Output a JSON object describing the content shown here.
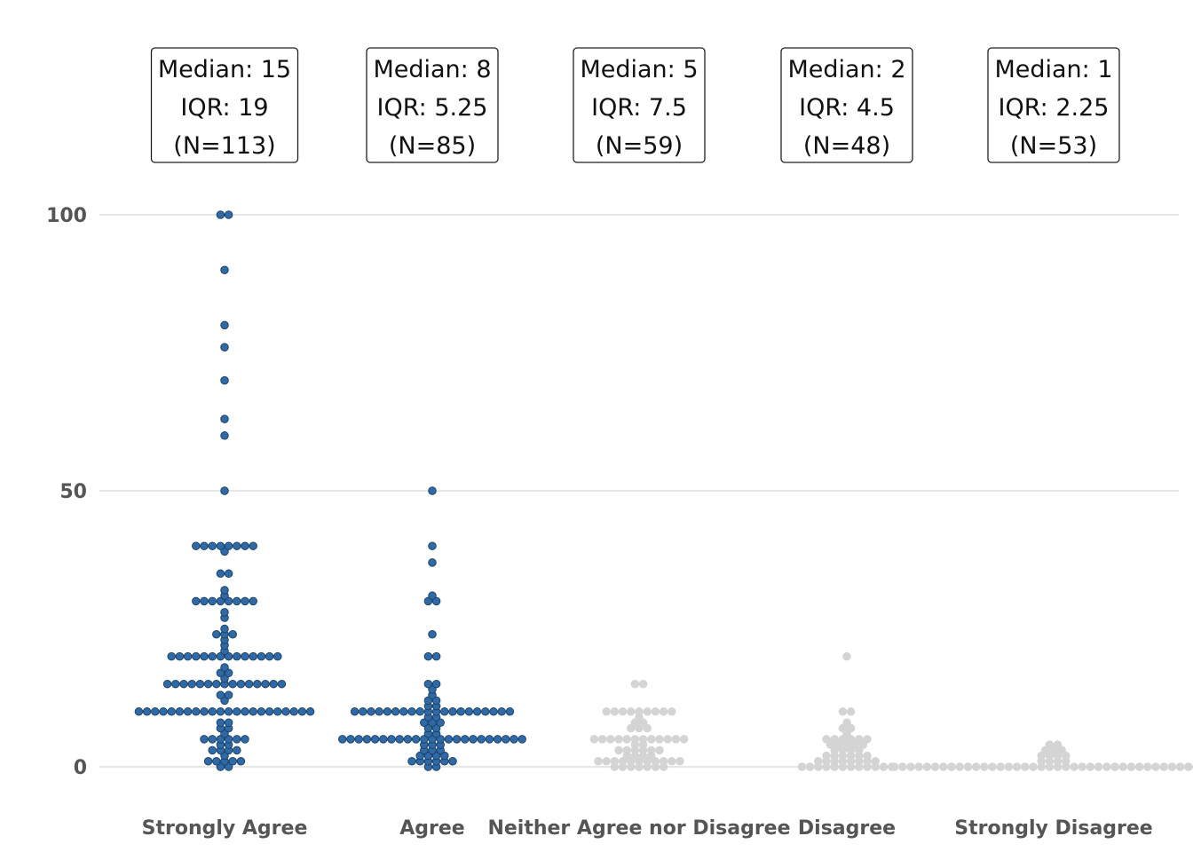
{
  "chart_data": {
    "type": "scatter",
    "subtype": "beeswarm",
    "title": "",
    "xlabel": "",
    "ylabel": "",
    "ylim": [
      0,
      100
    ],
    "yticks": [
      0,
      50,
      100
    ],
    "grid": "horizontal",
    "colors": {
      "highlight": "#2f6aa7",
      "highlight_edge": "#1b3f63",
      "muted": "#d4d4d4",
      "grid": "#e6e6e6"
    },
    "categories": [
      {
        "label": "Strongly Agree",
        "highlight": true,
        "stats": {
          "median_text": "Median: 15",
          "iqr_text": "IQR: 19",
          "n_text": "(N=113)"
        },
        "values": [
          100,
          100,
          90,
          80,
          76,
          70,
          63,
          60,
          50,
          40,
          40,
          40,
          40,
          40,
          40,
          40,
          40,
          39,
          35,
          35,
          32,
          31,
          30,
          30,
          30,
          30,
          30,
          30,
          30,
          30,
          28,
          27,
          25,
          24,
          24,
          24,
          23,
          22,
          21,
          20,
          20,
          20,
          20,
          20,
          20,
          20,
          20,
          20,
          20,
          20,
          20,
          20,
          20,
          18,
          17,
          17,
          16,
          15,
          15,
          15,
          15,
          15,
          15,
          15,
          15,
          15,
          15,
          15,
          15,
          15,
          15,
          15,
          13,
          13,
          12,
          10,
          10,
          10,
          10,
          10,
          10,
          10,
          10,
          10,
          10,
          10,
          10,
          10,
          10,
          10,
          10,
          10,
          10,
          10,
          10,
          10,
          10,
          8,
          8,
          7,
          7,
          6,
          5,
          5,
          5,
          5,
          5,
          5,
          4,
          4,
          3,
          3,
          3,
          3,
          2,
          1,
          1,
          1,
          1,
          1,
          0,
          0
        ]
      },
      {
        "label": "Agree",
        "highlight": true,
        "stats": {
          "median_text": "Median: 8",
          "iqr_text": "IQR: 5.25",
          "n_text": "(N=85)"
        },
        "values": [
          50,
          40,
          37,
          31,
          30,
          30,
          24,
          20,
          20,
          15,
          15,
          14,
          13,
          12,
          12,
          10,
          10,
          10,
          10,
          10,
          10,
          10,
          10,
          10,
          10,
          10,
          10,
          10,
          10,
          10,
          10,
          10,
          10,
          10,
          10,
          8,
          8,
          8,
          6,
          6,
          5,
          5,
          5,
          5,
          5,
          5,
          5,
          5,
          5,
          5,
          5,
          5,
          5,
          5,
          5,
          5,
          5,
          5,
          5,
          5,
          5,
          5,
          5,
          4,
          4,
          4,
          3,
          3,
          3,
          2,
          2,
          2,
          2,
          1,
          1,
          1,
          1,
          1,
          1,
          0,
          0,
          9,
          9,
          11,
          11,
          7,
          7
        ]
      },
      {
        "label": "Neither Agree nor Disagree",
        "highlight": false,
        "stats": {
          "median_text": "Median: 5",
          "iqr_text": "IQR: 7.5",
          "n_text": "(N=59)"
        },
        "values": [
          15,
          15,
          10,
          10,
          10,
          10,
          10,
          10,
          10,
          10,
          10,
          9,
          8,
          8,
          7,
          7,
          7,
          5,
          5,
          5,
          5,
          5,
          5,
          5,
          5,
          5,
          5,
          5,
          5,
          4,
          4,
          3,
          3,
          3,
          3,
          3,
          3,
          2,
          2,
          2,
          2,
          1,
          1,
          1,
          1,
          1,
          1,
          1,
          1,
          1,
          1,
          1,
          0,
          0,
          0,
          0,
          0,
          0,
          0
        ]
      },
      {
        "label": "Disagree",
        "highlight": false,
        "stats": {
          "median_text": "Median: 2",
          "iqr_text": "IQR: 4.5",
          "n_text": "(N=48)"
        },
        "values": [
          20,
          10,
          10,
          8,
          7,
          7,
          6,
          5,
          5,
          5,
          5,
          5,
          5,
          4,
          4,
          4,
          4,
          4,
          3,
          3,
          3,
          3,
          2,
          2,
          2,
          2,
          2,
          2,
          1,
          1,
          1,
          1,
          1,
          1,
          1,
          1,
          0,
          0,
          0,
          0,
          0,
          0,
          0,
          0,
          0,
          0,
          0,
          0
        ]
      },
      {
        "label": "Strongly Disagree",
        "highlight": false,
        "stats": {
          "median_text": "Median: 1",
          "iqr_text": "IQR: 2.25",
          "n_text": "(N=53)"
        },
        "values": [
          4,
          4,
          3,
          3,
          3,
          2,
          2,
          2,
          2,
          1,
          1,
          1,
          1,
          0,
          0,
          0,
          0,
          0,
          0,
          0,
          0,
          0,
          0,
          0,
          0,
          0,
          0,
          0,
          0,
          0,
          0,
          0,
          0,
          0,
          0,
          0,
          0,
          0,
          0,
          0,
          0,
          0,
          0,
          0,
          0,
          0,
          0,
          0,
          0,
          0,
          0,
          0,
          0
        ]
      }
    ]
  }
}
